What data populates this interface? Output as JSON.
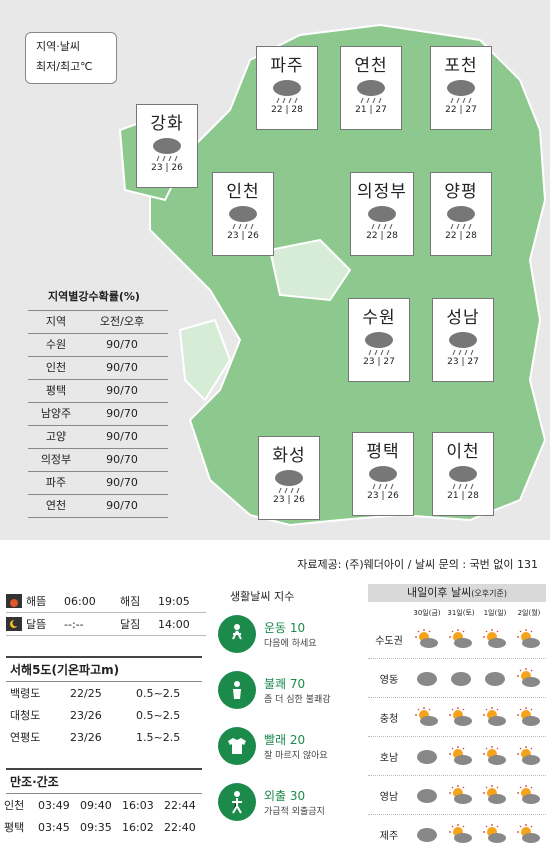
{
  "legend": {
    "line1": "지역·날씨",
    "line2": "최저/최고℃"
  },
  "cities": [
    {
      "name": "파주",
      "low": "22",
      "high": "28",
      "icon": "rain-cloud-icon"
    },
    {
      "name": "연천",
      "low": "21",
      "high": "27",
      "icon": "rain-cloud-icon"
    },
    {
      "name": "포천",
      "low": "22",
      "high": "27",
      "icon": "rain-cloud-icon"
    },
    {
      "name": "강화",
      "low": "23",
      "high": "26",
      "icon": "rain-cloud-icon"
    },
    {
      "name": "인천",
      "low": "23",
      "high": "26",
      "icon": "rain-cloud-icon"
    },
    {
      "name": "의정부",
      "low": "22",
      "high": "28",
      "icon": "rain-cloud-icon"
    },
    {
      "name": "양평",
      "low": "22",
      "high": "28",
      "icon": "rain-cloud-icon"
    },
    {
      "name": "수원",
      "low": "23",
      "high": "27",
      "icon": "rain-cloud-icon"
    },
    {
      "name": "성남",
      "low": "23",
      "high": "27",
      "icon": "rain-cloud-icon"
    },
    {
      "name": "화성",
      "low": "23",
      "high": "26",
      "icon": "rain-cloud-icon"
    },
    {
      "name": "평택",
      "low": "23",
      "high": "26",
      "icon": "rain-cloud-icon"
    },
    {
      "name": "이천",
      "low": "21",
      "high": "28",
      "icon": "rain-cloud-icon"
    }
  ],
  "rain_prob": {
    "title": "지역별강수확률(%)",
    "headers": [
      "지역",
      "오전/오후"
    ],
    "rows": [
      [
        "수원",
        "90/70"
      ],
      [
        "인천",
        "90/70"
      ],
      [
        "평택",
        "90/70"
      ],
      [
        "남양주",
        "90/70"
      ],
      [
        "고양",
        "90/70"
      ],
      [
        "의정부",
        "90/70"
      ],
      [
        "파주",
        "90/70"
      ],
      [
        "연천",
        "90/70"
      ]
    ]
  },
  "source": "자료제공: (주)웨더아이 / 날씨 문의 : 국번 없이 131",
  "sun": {
    "sunrise_label": "해뜸",
    "sunrise": "06:00",
    "sunset_label": "해짐",
    "sunset": "19:05",
    "moonrise_label": "달뜸",
    "moonrise": "--:--",
    "moonset_label": "달짐",
    "moonset": "14:00"
  },
  "waves": {
    "title": "서해5도(기온파고m)",
    "rows": [
      [
        "백령도",
        "22/25",
        "0.5~2.5"
      ],
      [
        "대청도",
        "23/26",
        "0.5~2.5"
      ],
      [
        "연평도",
        "23/26",
        "1.5~2.5"
      ]
    ]
  },
  "tide": {
    "title": "만조·간조",
    "rows": [
      [
        "인천",
        "03:49",
        "09:40",
        "16:03",
        "22:44"
      ],
      [
        "평택",
        "03:45",
        "09:35",
        "16:02",
        "22:40"
      ]
    ]
  },
  "life": {
    "title": "생활날씨 지수",
    "items": [
      {
        "label": "운동 10",
        "desc": "다음에 하세요"
      },
      {
        "label": "불쾌 70",
        "desc": "좀 더 심한 불쾌감"
      },
      {
        "label": "빨래 20",
        "desc": "잘 마르지 않아요"
      },
      {
        "label": "외출 30",
        "desc": "가급적 외출금지"
      }
    ]
  },
  "forecast": {
    "title": "내일이후 날씨",
    "note": "(오후기준)",
    "days": [
      "30일(금)",
      "31일(토)",
      "1일(일)",
      "2일(월)"
    ],
    "regions": [
      {
        "name": "수도권",
        "icons": [
          "sun-cloud-icon",
          "sun-cloud-icon",
          "sun-cloud-icon",
          "sun-cloud-icon"
        ]
      },
      {
        "name": "영동",
        "icons": [
          "cloud-icon",
          "cloud-icon",
          "cloud-icon",
          "sun-cloud-icon"
        ]
      },
      {
        "name": "충청",
        "icons": [
          "sun-cloud-icon",
          "sun-cloud-icon",
          "sun-cloud-icon",
          "sun-cloud-icon"
        ]
      },
      {
        "name": "호남",
        "icons": [
          "cloud-icon",
          "sun-cloud-icon",
          "sun-cloud-icon",
          "sun-cloud-icon"
        ]
      },
      {
        "name": "영남",
        "icons": [
          "cloud-icon",
          "sun-cloud-icon",
          "sun-cloud-icon",
          "sun-cloud-icon"
        ]
      },
      {
        "name": "제주",
        "icons": [
          "cloud-icon",
          "sun-cloud-icon",
          "sun-cloud-icon",
          "sun-cloud-icon"
        ]
      }
    ]
  },
  "colors": {
    "map_land": "#8dc98f",
    "map_water": "#e8e8e8",
    "accent_green": "#1b8a4a"
  }
}
